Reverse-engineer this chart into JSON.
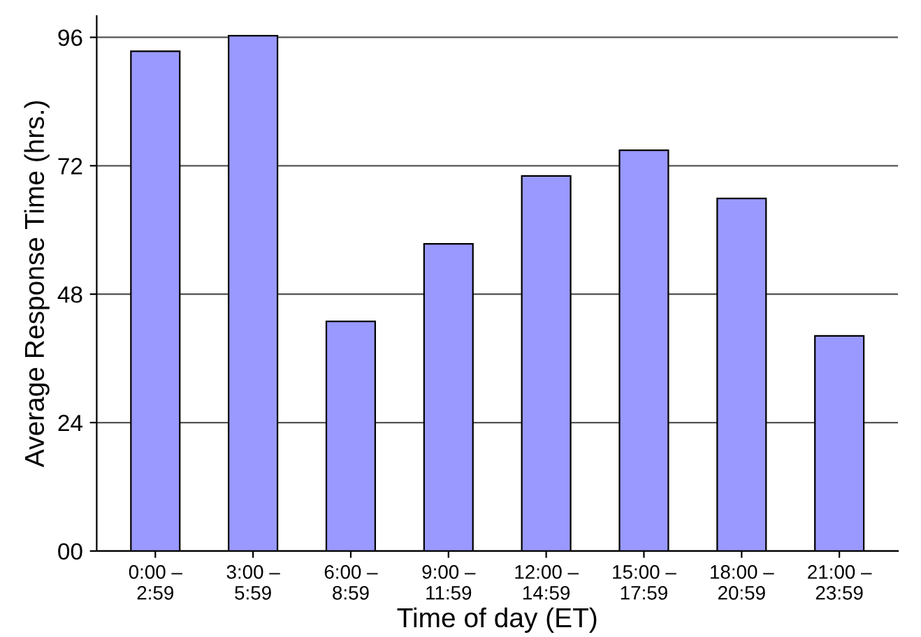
{
  "chart_data": {
    "type": "bar",
    "xlabel": "Time of day (ET)",
    "ylabel": "Average Response Time (hrs.)",
    "categories": [
      "0:00 –\n2:59",
      "3:00 –\n5:59",
      "6:00 –\n8:59",
      "9:00 –\n11:59",
      "12:00 –\n14:59",
      "15:00 –\n17:59",
      "18:00 –\n20:59",
      "21:00 –\n23:59"
    ],
    "values": [
      93.4,
      96.3,
      42.9,
      57.4,
      70.1,
      74.9,
      65.9,
      40.2
    ],
    "color": "#9999ff",
    "ylim": [
      0,
      100
    ],
    "yticks": [
      {
        "value": 0,
        "label": "00"
      },
      24,
      48,
      72,
      96
    ],
    "grid": "y",
    "legend": false
  }
}
